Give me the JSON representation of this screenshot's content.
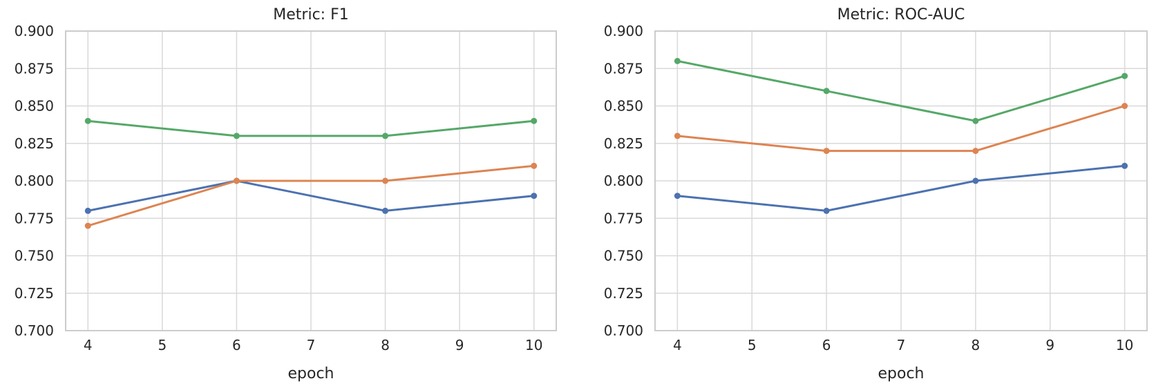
{
  "figure": {
    "background": "#ffffff",
    "text_color": "#262626",
    "grid_color": "#D9D9D9",
    "spine_color": "#CCCCCC"
  },
  "chart_data": [
    {
      "type": "line",
      "title": "Metric: F1",
      "xlabel": "epoch",
      "ylabel": "",
      "x": [
        4,
        6,
        8,
        10
      ],
      "xlim": [
        3.7,
        10.3
      ],
      "ylim": [
        0.7,
        0.9
      ],
      "xticks": [
        4,
        5,
        6,
        7,
        8,
        9,
        10
      ],
      "xticklabels": [
        "4",
        "5",
        "6",
        "7",
        "8",
        "9",
        "10"
      ],
      "yticks": [
        0.7,
        0.725,
        0.75,
        0.775,
        0.8,
        0.825,
        0.85,
        0.875,
        0.9
      ],
      "yticklabels": [
        "0.700",
        "0.725",
        "0.750",
        "0.775",
        "0.800",
        "0.825",
        "0.850",
        "0.875",
        "0.900"
      ],
      "grid": true,
      "legend": false,
      "series": [
        {
          "name": "blue-series",
          "color": "#4C72B0",
          "values": [
            0.78,
            0.8,
            0.78,
            0.79
          ]
        },
        {
          "name": "orange-series",
          "color": "#DD8452",
          "values": [
            0.77,
            0.8,
            0.8,
            0.81
          ]
        },
        {
          "name": "green-series",
          "color": "#55A868",
          "values": [
            0.84,
            0.83,
            0.83,
            0.84
          ]
        }
      ]
    },
    {
      "type": "line",
      "title": "Metric: ROC-AUC",
      "xlabel": "epoch",
      "ylabel": "",
      "x": [
        4,
        6,
        8,
        10
      ],
      "xlim": [
        3.7,
        10.3
      ],
      "ylim": [
        0.7,
        0.9
      ],
      "xticks": [
        4,
        5,
        6,
        7,
        8,
        9,
        10
      ],
      "xticklabels": [
        "4",
        "5",
        "6",
        "7",
        "8",
        "9",
        "10"
      ],
      "yticks": [
        0.7,
        0.725,
        0.75,
        0.775,
        0.8,
        0.825,
        0.85,
        0.875,
        0.9
      ],
      "yticklabels": [
        "0.700",
        "0.725",
        "0.750",
        "0.775",
        "0.800",
        "0.825",
        "0.850",
        "0.875",
        "0.900"
      ],
      "grid": true,
      "legend": false,
      "series": [
        {
          "name": "blue-series",
          "color": "#4C72B0",
          "values": [
            0.79,
            0.78,
            0.8,
            0.81
          ]
        },
        {
          "name": "orange-series",
          "color": "#DD8452",
          "values": [
            0.83,
            0.82,
            0.82,
            0.85
          ]
        },
        {
          "name": "green-series",
          "color": "#55A868",
          "values": [
            0.88,
            0.86,
            0.84,
            0.87
          ]
        }
      ]
    }
  ]
}
